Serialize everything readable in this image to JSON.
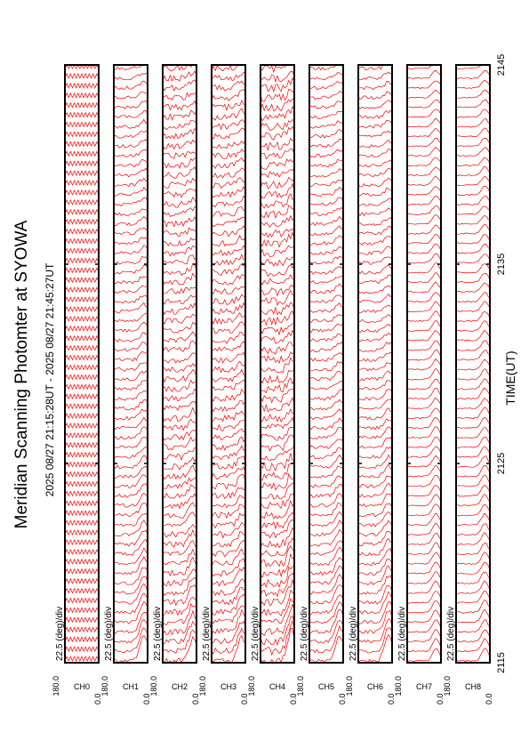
{
  "title": "Meridian Scanning Photomter at SYOWA",
  "time_range_label": "2025 08/27 21:15:28UT - 2025 08/27 21:45:27UT",
  "colors": {
    "trace": "#ff0000",
    "frame": "#000000",
    "background": "#ffffff"
  },
  "chart_data": {
    "type": "line",
    "xlabel": "TIME(UT)",
    "x_ticks": [
      "2115",
      "2125",
      "2135",
      "2145"
    ],
    "x_range": [
      "2115",
      "2145"
    ],
    "scan_angle_range": [
      0.0,
      180.0
    ],
    "grid": false,
    "panels": [
      {
        "channel": "CH0",
        "y_top": "180.0",
        "y_bottom": "0.0",
        "scale": "22.5 (deg)/div",
        "pattern": "square"
      },
      {
        "channel": "CH1",
        "y_top": "180.0",
        "y_bottom": "0.0",
        "scale": "22.5 (deg)/div",
        "pattern": "decay"
      },
      {
        "channel": "CH2",
        "y_top": "180.0",
        "y_bottom": "0.0",
        "scale": "22.5 (deg)/div",
        "pattern": "noisy"
      },
      {
        "channel": "CH3",
        "y_top": "180.0",
        "y_bottom": "0.0",
        "scale": "22.5 (deg)/div",
        "pattern": "noisy"
      },
      {
        "channel": "CH4",
        "y_top": "180.0",
        "y_bottom": "0.0",
        "scale": "22.5 (deg)/div",
        "pattern": "noisy-high"
      },
      {
        "channel": "CH5",
        "y_top": "180.0",
        "y_bottom": "0.0",
        "scale": "22.5 (deg)/div",
        "pattern": "decay"
      },
      {
        "channel": "CH6",
        "y_top": "180.0",
        "y_bottom": "0.0",
        "scale": "22.5 (deg)/div",
        "pattern": "decay"
      },
      {
        "channel": "CH7",
        "y_top": "180.0",
        "y_bottom": "0.0",
        "scale": "22.5 (deg)/div",
        "pattern": "smooth"
      },
      {
        "channel": "CH8",
        "y_top": "180.0",
        "y_bottom": "0.0",
        "scale": "22.5 (deg)/div",
        "pattern": "smooth"
      }
    ]
  }
}
